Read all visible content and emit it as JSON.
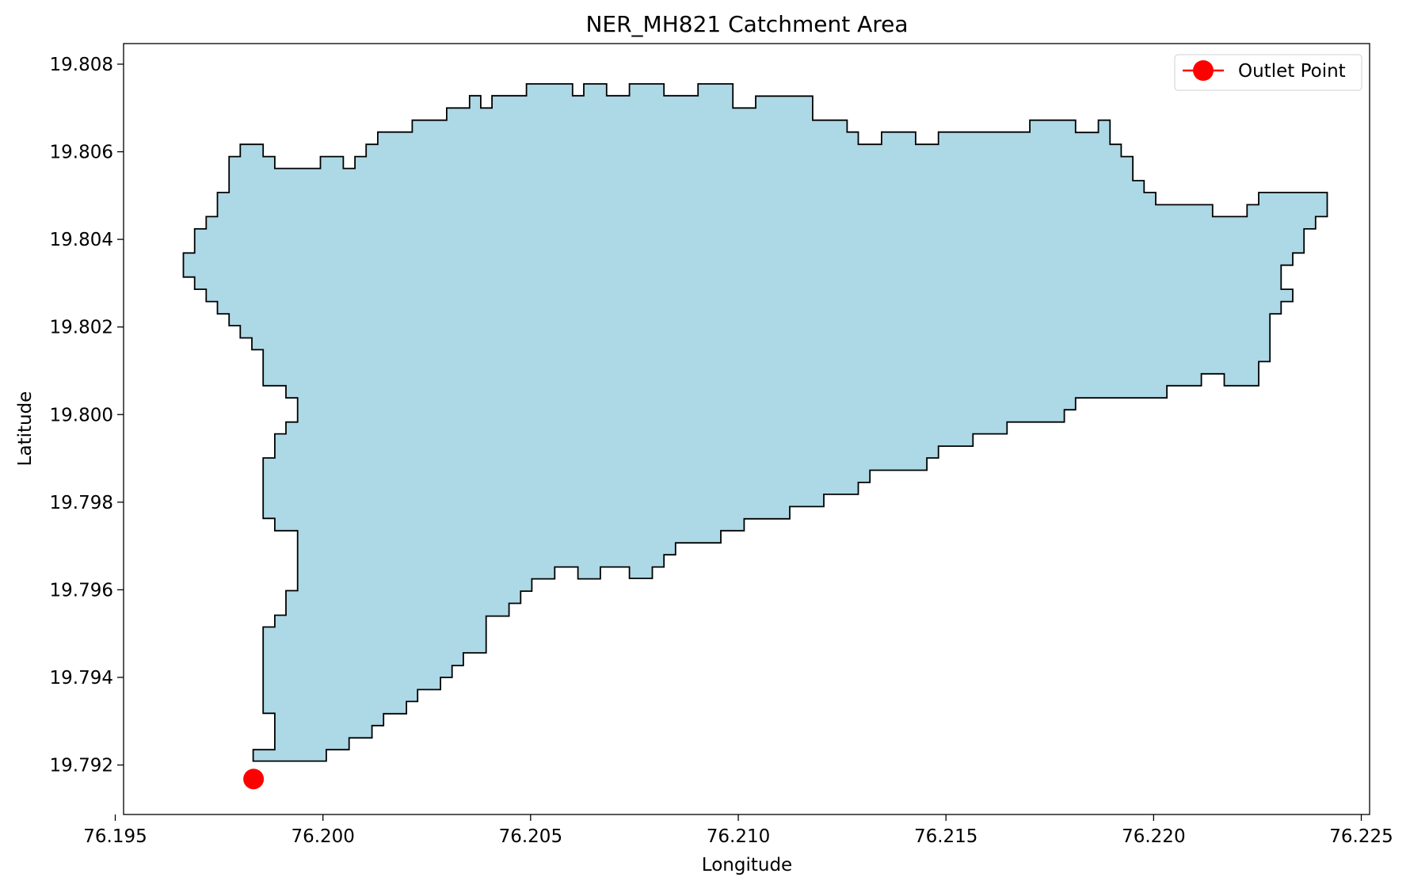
{
  "chart_data": {
    "type": "map",
    "title": "NER_MH821 Catchment Area",
    "xlabel": "Longitude",
    "ylabel": "Latitude",
    "xlim": [
      76.1952,
      76.2252
    ],
    "ylim": [
      19.79087,
      19.80847
    ],
    "xticks": [
      76.195,
      76.2,
      76.205,
      76.21,
      76.215,
      76.22,
      76.225
    ],
    "xtick_labels": [
      "76.195",
      "76.200",
      "76.205",
      "76.210",
      "76.215",
      "76.220",
      "76.225"
    ],
    "yticks": [
      19.792,
      19.794,
      19.796,
      19.798,
      19.8,
      19.802,
      19.804,
      19.806,
      19.808
    ],
    "ytick_labels": [
      "19.792",
      "19.794",
      "19.796",
      "19.798",
      "19.800",
      "19.802",
      "19.804",
      "19.806",
      "19.808"
    ],
    "grid": false,
    "legend_position": "top-right",
    "catchment": {
      "fill_color": "#add8e6",
      "edge_color": "#000000",
      "boundary": [
        [
          76.19832,
          19.79209
        ],
        [
          76.20008,
          19.79209
        ],
        [
          76.20008,
          19.79235
        ],
        [
          76.20063,
          19.79235
        ],
        [
          76.20063,
          19.79262
        ],
        [
          76.20118,
          19.79262
        ],
        [
          76.20118,
          19.7929
        ],
        [
          76.20146,
          19.7929
        ],
        [
          76.20146,
          19.79317
        ],
        [
          76.20201,
          19.79317
        ],
        [
          76.20201,
          19.79345
        ],
        [
          76.20228,
          19.79345
        ],
        [
          76.20228,
          19.79372
        ],
        [
          76.20283,
          19.79372
        ],
        [
          76.20283,
          19.794
        ],
        [
          76.20311,
          19.794
        ],
        [
          76.20311,
          19.79427
        ],
        [
          76.20338,
          19.79427
        ],
        [
          76.20338,
          19.79456
        ],
        [
          76.20393,
          19.79456
        ],
        [
          76.20393,
          19.7954
        ],
        [
          76.20448,
          19.7954
        ],
        [
          76.20448,
          19.79569
        ],
        [
          76.20476,
          19.79569
        ],
        [
          76.20476,
          19.79597
        ],
        [
          76.20503,
          19.79597
        ],
        [
          76.20503,
          19.79625
        ],
        [
          76.20558,
          19.79625
        ],
        [
          76.20558,
          19.79652
        ],
        [
          76.20614,
          19.79652
        ],
        [
          76.20614,
          19.79625
        ],
        [
          76.20668,
          19.79625
        ],
        [
          76.20668,
          19.79652
        ],
        [
          76.20738,
          19.79652
        ],
        [
          76.20738,
          19.79626
        ],
        [
          76.20793,
          19.79626
        ],
        [
          76.20793,
          19.79652
        ],
        [
          76.20821,
          19.79652
        ],
        [
          76.20821,
          19.7968
        ],
        [
          76.20849,
          19.7968
        ],
        [
          76.20849,
          19.79707
        ],
        [
          76.20958,
          19.79707
        ],
        [
          76.20958,
          19.79735
        ],
        [
          76.21014,
          19.79735
        ],
        [
          76.21014,
          19.79762
        ],
        [
          76.21124,
          19.79762
        ],
        [
          76.21124,
          19.7979
        ],
        [
          76.21206,
          19.7979
        ],
        [
          76.21206,
          19.79818
        ],
        [
          76.21289,
          19.79818
        ],
        [
          76.21289,
          19.79845
        ],
        [
          76.21317,
          19.79845
        ],
        [
          76.21317,
          19.79873
        ],
        [
          76.21454,
          19.79873
        ],
        [
          76.21454,
          19.79901
        ],
        [
          76.21482,
          19.79901
        ],
        [
          76.21482,
          19.79928
        ],
        [
          76.21565,
          19.79928
        ],
        [
          76.21565,
          19.79956
        ],
        [
          76.21647,
          19.79956
        ],
        [
          76.21647,
          19.79983
        ],
        [
          76.21785,
          19.79983
        ],
        [
          76.21785,
          19.80011
        ],
        [
          76.21812,
          19.80011
        ],
        [
          76.21812,
          19.80038
        ],
        [
          76.22032,
          19.80038
        ],
        [
          76.22032,
          19.80066
        ],
        [
          76.22115,
          19.80066
        ],
        [
          76.22115,
          19.80093
        ],
        [
          76.2217,
          19.80093
        ],
        [
          76.2217,
          19.80066
        ],
        [
          76.22253,
          19.80066
        ],
        [
          76.22253,
          19.80121
        ],
        [
          76.2228,
          19.80121
        ],
        [
          76.2228,
          19.8023
        ],
        [
          76.22307,
          19.8023
        ],
        [
          76.22307,
          19.80258
        ],
        [
          76.22335,
          19.80258
        ],
        [
          76.22335,
          19.80286
        ],
        [
          76.22307,
          19.80286
        ],
        [
          76.22307,
          19.80341
        ],
        [
          76.22335,
          19.80341
        ],
        [
          76.22335,
          19.80369
        ],
        [
          76.22362,
          19.80369
        ],
        [
          76.22362,
          19.80424
        ],
        [
          76.2239,
          19.80424
        ],
        [
          76.2239,
          19.80452
        ],
        [
          76.22418,
          19.80452
        ],
        [
          76.22418,
          19.80507
        ],
        [
          76.22253,
          19.80507
        ],
        [
          76.22253,
          19.80479
        ],
        [
          76.22225,
          19.80479
        ],
        [
          76.22225,
          19.80452
        ],
        [
          76.22142,
          19.80452
        ],
        [
          76.22142,
          19.80479
        ],
        [
          76.22005,
          19.80479
        ],
        [
          76.22005,
          19.80507
        ],
        [
          76.21977,
          19.80507
        ],
        [
          76.21977,
          19.80534
        ],
        [
          76.2195,
          19.80534
        ],
        [
          76.2195,
          19.80589
        ],
        [
          76.21922,
          19.80589
        ],
        [
          76.21922,
          19.80617
        ],
        [
          76.21895,
          19.80617
        ],
        [
          76.21895,
          19.80672
        ],
        [
          76.21867,
          19.80672
        ],
        [
          76.21867,
          19.80644
        ],
        [
          76.21812,
          19.80644
        ],
        [
          76.21812,
          19.80672
        ],
        [
          76.21702,
          19.80672
        ],
        [
          76.21702,
          19.80645
        ],
        [
          76.21482,
          19.80645
        ],
        [
          76.21482,
          19.80617
        ],
        [
          76.21427,
          19.80617
        ],
        [
          76.21427,
          19.80645
        ],
        [
          76.21345,
          19.80645
        ],
        [
          76.21345,
          19.80617
        ],
        [
          76.21289,
          19.80617
        ],
        [
          76.21289,
          19.80645
        ],
        [
          76.21262,
          19.80645
        ],
        [
          76.21262,
          19.80672
        ],
        [
          76.21179,
          19.80672
        ],
        [
          76.21179,
          19.80727
        ],
        [
          76.21042,
          19.80727
        ],
        [
          76.21042,
          19.807
        ],
        [
          76.20987,
          19.807
        ],
        [
          76.20987,
          19.80755
        ],
        [
          76.20903,
          19.80755
        ],
        [
          76.20903,
          19.80728
        ],
        [
          76.20821,
          19.80728
        ],
        [
          76.20821,
          19.80755
        ],
        [
          76.20738,
          19.80755
        ],
        [
          76.20738,
          19.80728
        ],
        [
          76.20683,
          19.80728
        ],
        [
          76.20683,
          19.80755
        ],
        [
          76.20628,
          19.80755
        ],
        [
          76.20628,
          19.80728
        ],
        [
          76.20601,
          19.80728
        ],
        [
          76.20601,
          19.80755
        ],
        [
          76.2049,
          19.80755
        ],
        [
          76.2049,
          19.80728
        ],
        [
          76.20407,
          19.80728
        ],
        [
          76.20407,
          19.807
        ],
        [
          76.2038,
          19.807
        ],
        [
          76.2038,
          19.80728
        ],
        [
          76.20353,
          19.80728
        ],
        [
          76.20353,
          19.807
        ],
        [
          76.20298,
          19.807
        ],
        [
          76.20298,
          19.80672
        ],
        [
          76.20215,
          19.80672
        ],
        [
          76.20215,
          19.80645
        ],
        [
          76.20132,
          19.80645
        ],
        [
          76.20132,
          19.80617
        ],
        [
          76.20104,
          19.80617
        ],
        [
          76.20104,
          19.80589
        ],
        [
          76.20077,
          19.80589
        ],
        [
          76.20077,
          19.80562
        ],
        [
          76.20049,
          19.80562
        ],
        [
          76.20049,
          19.80589
        ],
        [
          76.19994,
          19.80589
        ],
        [
          76.19994,
          19.80562
        ],
        [
          76.19884,
          19.80562
        ],
        [
          76.19884,
          19.80589
        ],
        [
          76.19856,
          19.80589
        ],
        [
          76.19856,
          19.80617
        ],
        [
          76.19801,
          19.80617
        ],
        [
          76.19801,
          19.80589
        ],
        [
          76.19774,
          19.80589
        ],
        [
          76.19774,
          19.80507
        ],
        [
          76.19746,
          19.80507
        ],
        [
          76.19746,
          19.80452
        ],
        [
          76.19719,
          19.80452
        ],
        [
          76.19719,
          19.80424
        ],
        [
          76.19691,
          19.80424
        ],
        [
          76.19691,
          19.80369
        ],
        [
          76.19664,
          19.80369
        ],
        [
          76.19664,
          19.80314
        ],
        [
          76.19691,
          19.80314
        ],
        [
          76.19691,
          19.80286
        ],
        [
          76.19719,
          19.80286
        ],
        [
          76.19719,
          19.80258
        ],
        [
          76.19746,
          19.80258
        ],
        [
          76.19746,
          19.8023
        ],
        [
          76.19774,
          19.8023
        ],
        [
          76.19774,
          19.80203
        ],
        [
          76.19801,
          19.80203
        ],
        [
          76.19801,
          19.80175
        ],
        [
          76.19829,
          19.80175
        ],
        [
          76.19829,
          19.80148
        ],
        [
          76.19856,
          19.80148
        ],
        [
          76.19856,
          19.80066
        ],
        [
          76.19911,
          19.80066
        ],
        [
          76.19911,
          19.80038
        ],
        [
          76.19939,
          19.80038
        ],
        [
          76.19939,
          19.79983
        ],
        [
          76.19911,
          19.79983
        ],
        [
          76.19911,
          19.79956
        ],
        [
          76.19884,
          19.79956
        ],
        [
          76.19884,
          19.79901
        ],
        [
          76.19856,
          19.79901
        ],
        [
          76.19856,
          19.79763
        ],
        [
          76.19884,
          19.79763
        ],
        [
          76.19884,
          19.79735
        ],
        [
          76.19939,
          19.79735
        ],
        [
          76.19939,
          19.79598
        ],
        [
          76.19911,
          19.79598
        ],
        [
          76.19911,
          19.79542
        ],
        [
          76.19884,
          19.79542
        ],
        [
          76.19884,
          19.79515
        ],
        [
          76.19856,
          19.79515
        ],
        [
          76.19856,
          19.79318
        ],
        [
          76.19884,
          19.79318
        ],
        [
          76.19884,
          19.79235
        ],
        [
          76.19832,
          19.79235
        ]
      ]
    },
    "series": [
      {
        "name": "Outlet Point",
        "color": "#ff0000",
        "marker": "circle",
        "x": [
          76.19833
        ],
        "y": [
          19.79168
        ]
      }
    ]
  }
}
